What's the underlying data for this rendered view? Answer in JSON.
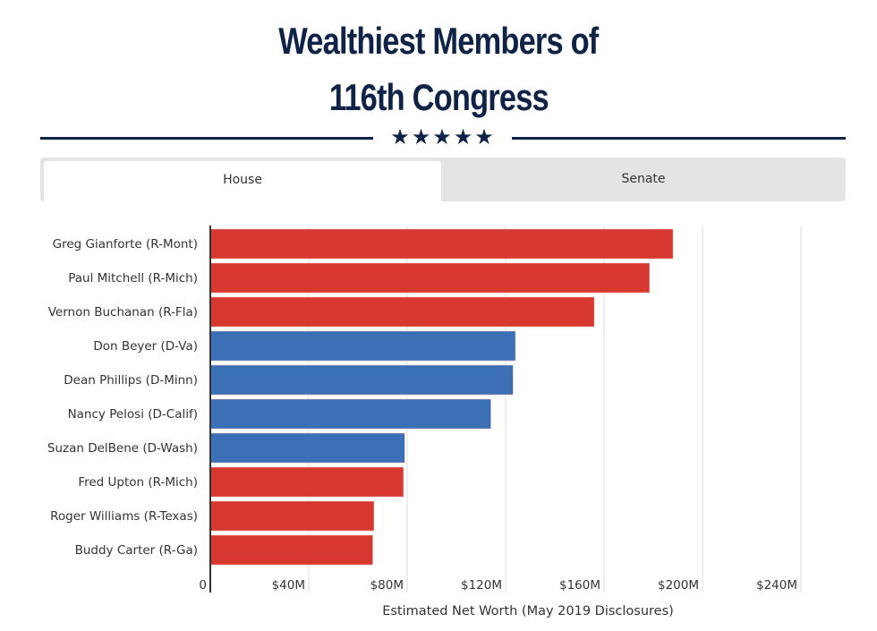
{
  "title_line1": "Wealthiest Members of",
  "title_line2": "116th Congress",
  "stars": "★★★★★",
  "tabs": [
    {
      "label": "House",
      "active": true
    },
    {
      "label": "Senate",
      "active": false
    }
  ],
  "chart_data": {
    "type": "bar",
    "orientation": "horizontal",
    "categories": [
      "Greg Gianforte (R-Mont)",
      "Paul Mitchell (R-Mich)",
      "Vernon Buchanan (R-Fla)",
      "Don Beyer (D-Va)",
      "Dean Phillips (D-Minn)",
      "Nancy Pelosi (D-Calif)",
      "Suzan DelBene (D-Wash)",
      "Fred Upton (R-Mich)",
      "Roger Williams (R-Texas)",
      "Buddy Carter (R-Ga)"
    ],
    "values": [
      188,
      178.5,
      156,
      124,
      123,
      114,
      79,
      78.5,
      66.5,
      66
    ],
    "parties": [
      "R",
      "R",
      "R",
      "D",
      "D",
      "D",
      "D",
      "R",
      "R",
      "R"
    ],
    "colors": {
      "R": "#d63830",
      "D": "#3b6fb6"
    },
    "xlabel": "Estimated Net Worth (May 2019 Disclosures)",
    "unit": "millions USD",
    "xlim": [
      0,
      250
    ],
    "xticks": [
      0,
      40,
      80,
      120,
      160,
      200,
      240
    ],
    "xtick_labels": [
      "0",
      "$40M",
      "$80M",
      "$120M",
      "$160M",
      "$200M",
      "$240M"
    ],
    "grid": true
  }
}
